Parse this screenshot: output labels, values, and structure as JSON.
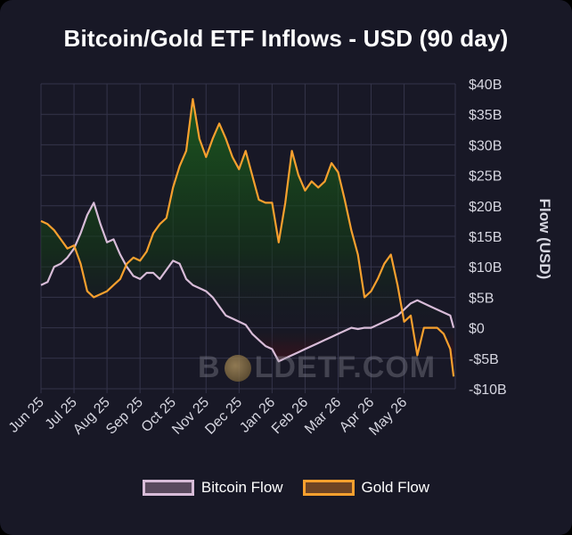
{
  "title": "Bitcoin/Gold ETF Inflows - USD (90 day)",
  "watermark": {
    "left": "B",
    "right": "LDETF.COM"
  },
  "chart_data": {
    "type": "line",
    "ylabel": "Flow (USD)",
    "xlabel": "",
    "ylim": [
      -10,
      40
    ],
    "yticks": [
      {
        "v": 40,
        "label": "$40B"
      },
      {
        "v": 35,
        "label": "$35B"
      },
      {
        "v": 30,
        "label": "$30B"
      },
      {
        "v": 25,
        "label": "$25B"
      },
      {
        "v": 20,
        "label": "$20B"
      },
      {
        "v": 15,
        "label": "$15B"
      },
      {
        "v": 10,
        "label": "$10B"
      },
      {
        "v": 5,
        "label": "$5B"
      },
      {
        "v": 0,
        "label": "$0"
      },
      {
        "v": -5,
        "label": "-$5B"
      },
      {
        "v": -10,
        "label": "-$10B"
      }
    ],
    "xrange": [
      0,
      12.55
    ],
    "xticks": [
      "Jun 25",
      "Jul 25",
      "Aug 25",
      "Sep 25",
      "Oct 25",
      "Nov 25",
      "Dec 25",
      "Jan 26",
      "Feb 26",
      "Mar 26",
      "Apr 26",
      "May 26"
    ],
    "grid": true,
    "legend": "bottom",
    "series": [
      {
        "name": "Bitcoin Flow",
        "color": "#d8bcd8",
        "x": [
          0.0,
          0.2,
          0.4,
          0.6,
          0.8,
          1.0,
          1.2,
          1.4,
          1.6,
          1.8,
          2.0,
          2.2,
          2.4,
          2.6,
          2.8,
          3.0,
          3.2,
          3.4,
          3.6,
          3.8,
          4.0,
          4.2,
          4.4,
          4.6,
          4.8,
          5.0,
          5.2,
          5.4,
          5.6,
          5.8,
          6.0,
          6.2,
          6.4,
          6.6,
          6.8,
          7.0,
          7.2,
          7.4,
          7.6,
          7.8,
          8.0,
          8.2,
          8.4,
          8.6,
          8.8,
          9.0,
          9.2,
          9.4,
          9.6,
          9.8,
          10.0,
          10.2,
          10.4,
          10.6,
          10.8,
          11.0,
          11.2,
          11.4,
          11.6,
          11.8,
          12.0,
          12.2,
          12.4,
          12.5
        ],
        "values": [
          7.0,
          7.5,
          10.0,
          10.5,
          11.5,
          13.0,
          15.5,
          18.5,
          20.5,
          17.0,
          14.0,
          14.5,
          12.0,
          10.0,
          8.5,
          8.0,
          9.0,
          9.0,
          8.0,
          9.5,
          11.0,
          10.5,
          8.0,
          7.0,
          6.5,
          6.0,
          5.0,
          3.5,
          2.0,
          1.5,
          1.0,
          0.5,
          -1.0,
          -2.0,
          -3.0,
          -3.5,
          -5.5,
          -5.0,
          -4.5,
          -4.0,
          -3.5,
          -3.0,
          -2.5,
          -2.0,
          -1.5,
          -1.0,
          -0.5,
          0.0,
          -0.2,
          0.0,
          0.0,
          0.5,
          1.0,
          1.5,
          2.0,
          3.0,
          4.0,
          4.5,
          4.0,
          3.5,
          3.0,
          2.5,
          2.0,
          0.0
        ]
      },
      {
        "name": "Gold Flow",
        "color": "#f7a02e",
        "x": [
          0.0,
          0.2,
          0.4,
          0.6,
          0.8,
          1.0,
          1.2,
          1.4,
          1.6,
          1.8,
          2.0,
          2.2,
          2.4,
          2.6,
          2.8,
          3.0,
          3.2,
          3.4,
          3.6,
          3.8,
          4.0,
          4.2,
          4.4,
          4.6,
          4.8,
          5.0,
          5.2,
          5.4,
          5.6,
          5.8,
          6.0,
          6.2,
          6.4,
          6.6,
          6.8,
          7.0,
          7.2,
          7.4,
          7.6,
          7.8,
          8.0,
          8.2,
          8.4,
          8.6,
          8.8,
          9.0,
          9.2,
          9.4,
          9.6,
          9.8,
          10.0,
          10.2,
          10.4,
          10.6,
          10.8,
          11.0,
          11.2,
          11.4,
          11.6,
          11.8,
          12.0,
          12.2,
          12.4,
          12.5
        ],
        "values": [
          17.5,
          17.0,
          16.0,
          14.5,
          13.0,
          13.5,
          10.5,
          6.0,
          5.0,
          5.5,
          6.0,
          7.0,
          8.0,
          10.5,
          11.5,
          11.0,
          12.5,
          15.5,
          17.0,
          18.0,
          23.0,
          26.5,
          29.0,
          37.5,
          31.0,
          28.0,
          31.0,
          33.5,
          31.0,
          28.0,
          26.0,
          29.0,
          25.0,
          21.0,
          20.5,
          20.5,
          14.0,
          20.5,
          29.0,
          25.0,
          22.5,
          24.0,
          23.0,
          24.0,
          27.0,
          25.5,
          21.0,
          16.0,
          12.0,
          5.0,
          6.0,
          8.0,
          10.5,
          12.0,
          7.0,
          1.0,
          2.0,
          -4.5,
          0.0,
          0.0,
          0.0,
          -1.0,
          -3.5,
          -8.0
        ]
      }
    ]
  }
}
